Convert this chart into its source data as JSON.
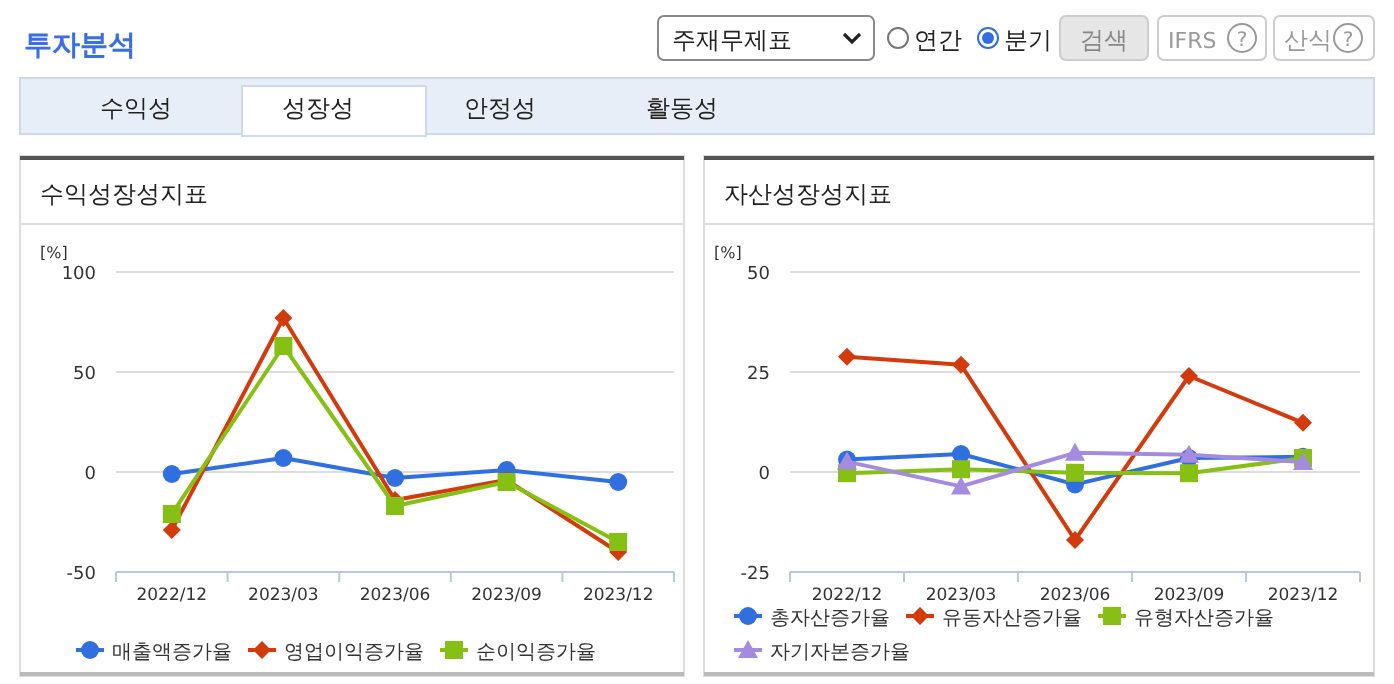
{
  "chart_data": [
    {
      "type": "other",
      "title": "투자분석",
      "annotations": [
        "주재무제표",
        "연간",
        "분기",
        "검색",
        "IFRS",
        "?",
        "산식",
        "?",
        "수익성",
        "성장성",
        "안정성",
        "활동성"
      ]
    },
    {
      "type": "line",
      "title": "수익성장성지표",
      "ylabel": "[%]",
      "categories": [
        "2022/12",
        "2023/03",
        "2023/06",
        "2023/09",
        "2023/12"
      ],
      "ylim": [
        -50,
        100
      ],
      "yticks": [
        -50,
        0,
        50,
        100
      ],
      "grid": "y",
      "legend": "bottom",
      "series": [
        {
          "name": "매출액증가율",
          "color": "#2f6fe0",
          "marker": "circle",
          "values": [
            -1,
            7,
            -3,
            1,
            -5
          ]
        },
        {
          "name": "영업이익증가율",
          "color": "#d33b0c",
          "marker": "diamond",
          "values": [
            -29,
            77,
            -14,
            -4,
            -40
          ]
        },
        {
          "name": "순이익증가율",
          "color": "#86c014",
          "marker": "square",
          "values": [
            -21,
            63,
            -17,
            -5,
            -35
          ]
        }
      ]
    },
    {
      "type": "line",
      "title": "자산성장성지표",
      "ylabel": "[%]",
      "categories": [
        "2022/12",
        "2023/03",
        "2023/06",
        "2023/09",
        "2023/12"
      ],
      "ylim": [
        -25,
        50
      ],
      "yticks": [
        -25,
        0,
        25,
        50
      ],
      "grid": "y",
      "legend": "bottom",
      "series": [
        {
          "name": "총자산증가율",
          "color": "#2f6fe0",
          "marker": "circle",
          "values": [
            3.1,
            4.5,
            -3.1,
            3.5,
            3.8
          ]
        },
        {
          "name": "유동자산증가율",
          "color": "#d33b0c",
          "marker": "diamond",
          "values": [
            28.8,
            26.8,
            -17,
            24,
            12.3
          ]
        },
        {
          "name": "유형자산증가율",
          "color": "#86c014",
          "marker": "square",
          "values": [
            -0.3,
            0.7,
            -0.2,
            -0.3,
            3.5
          ]
        },
        {
          "name": "자기자본증가율",
          "color": "#a58be0",
          "marker": "triangle",
          "values": [
            2.6,
            -3.6,
            4.8,
            4.3,
            2.5
          ]
        }
      ]
    }
  ]
}
